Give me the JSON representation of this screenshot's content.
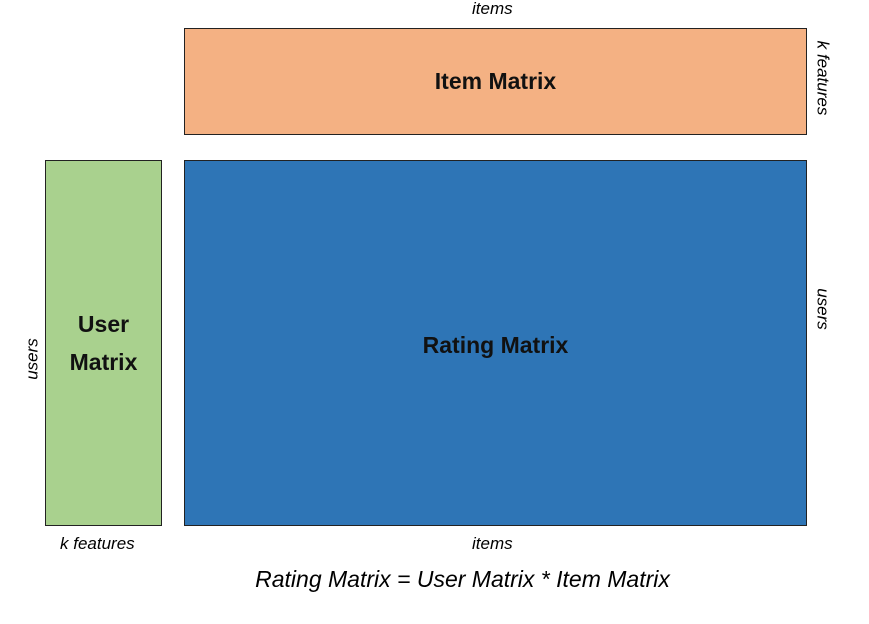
{
  "diagram": {
    "item_matrix": {
      "label": "Item Matrix",
      "color": "#F4B183"
    },
    "user_matrix": {
      "label_line1": "User",
      "label_line2": "Matrix",
      "color": "#A9D18E"
    },
    "rating_matrix": {
      "label": "Rating Matrix",
      "color": "#2E75B6"
    },
    "axis_labels": {
      "items_top": "items",
      "items_bottom": "items",
      "k_features_right": "k features",
      "k_features_bottom": "k features",
      "users_right": "users",
      "users_left": "users"
    },
    "equation": "Rating Matrix = User Matrix * Item Matrix"
  }
}
